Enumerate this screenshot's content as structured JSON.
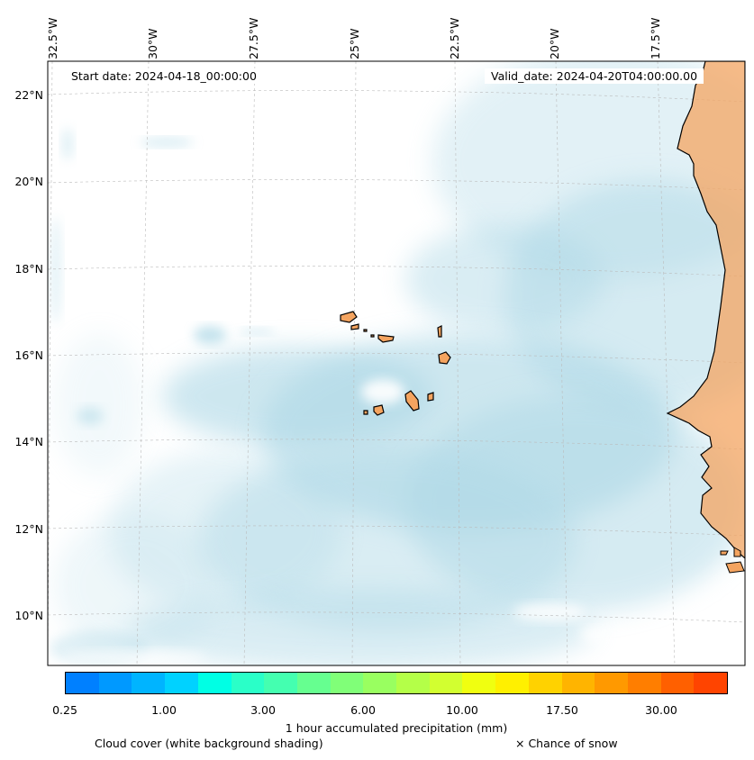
{
  "map": {
    "start_date": "Start date: 2024-04-18_00:00:00",
    "valid_date": "Valid_date: 2024-04-20T04:00:00.00",
    "lon_labels": [
      "32.5°W",
      "30°W",
      "27.5°W",
      "25°W",
      "22.5°W",
      "20°W",
      "17.5°W"
    ],
    "lat_labels": [
      "22°N",
      "20°N",
      "18°N",
      "16°N",
      "14°N",
      "12°N",
      "10°N"
    ],
    "colors": {
      "cloud": "#add8e6",
      "land": "#f4a460",
      "coast": "#000000",
      "grid": "#bbbbbb"
    }
  },
  "colorbar": {
    "label": "1 hour accumulated precipitation (mm)",
    "tick_labels": [
      "0.25",
      "1.00",
      "3.00",
      "6.00",
      "10.00",
      "17.50",
      "30.00"
    ],
    "colors": [
      "#0080ff",
      "#0099ff",
      "#00b4ff",
      "#00d2ff",
      "#00ffe4",
      "#2affc8",
      "#44ffb0",
      "#66ff90",
      "#80ff78",
      "#99ff60",
      "#b4ff48",
      "#d2ff30",
      "#f0ff10",
      "#fff000",
      "#ffd200",
      "#ffb400",
      "#ff9900",
      "#ff7e00",
      "#ff6000",
      "#ff4400"
    ]
  },
  "footer": {
    "cloud_label": "Cloud cover (white background shading)",
    "snow_label": "× Chance of snow"
  }
}
